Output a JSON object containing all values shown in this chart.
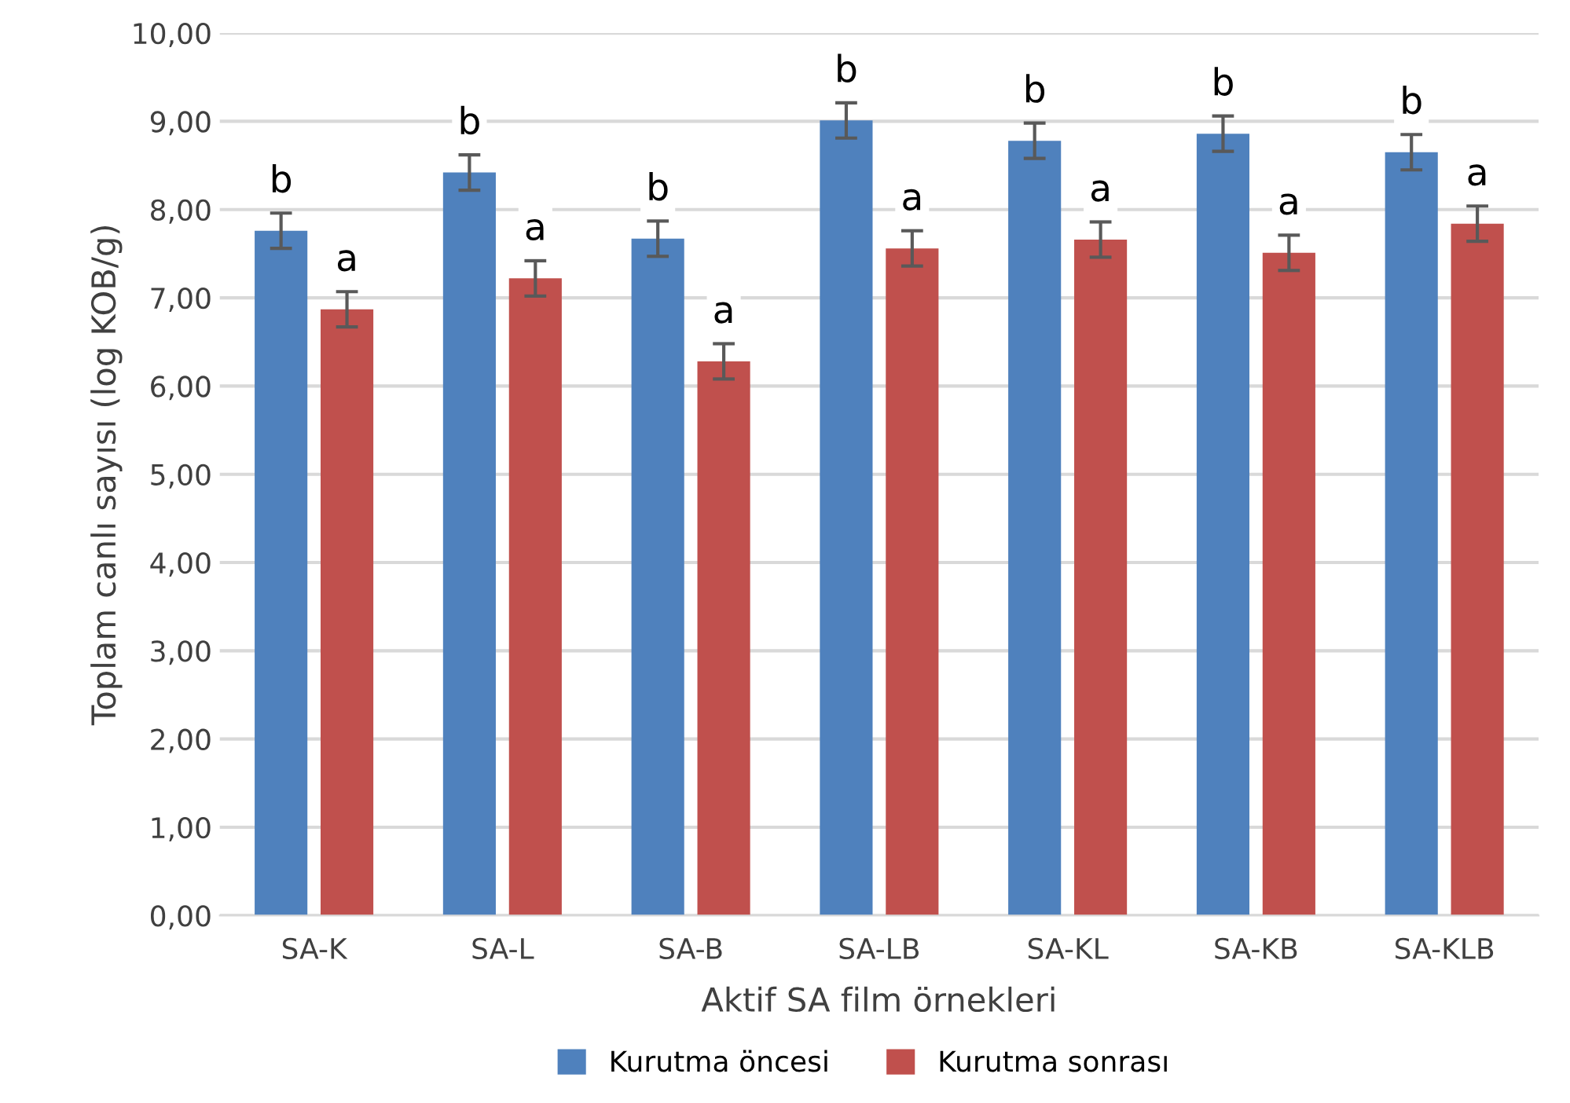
{
  "chart_data": {
    "type": "bar",
    "xlabel": "Aktif SA film örnekleri",
    "ylabel": "Toplam canlı sayısı (log KOB/g)",
    "categories": [
      "SA-K",
      "SA-L",
      "SA-B",
      "SA-LB",
      "SA-KL",
      "SA-KB",
      "SA-KLB"
    ],
    "series": [
      {
        "name": "Kurutma öncesi",
        "color": "#4f81bd",
        "values": [
          7.76,
          8.42,
          7.67,
          9.01,
          8.78,
          8.86,
          8.65
        ],
        "errors": [
          0.2,
          0.2,
          0.2,
          0.2,
          0.2,
          0.2,
          0.2
        ],
        "value_labels": [
          "b",
          "b",
          "b",
          "b",
          "b",
          "b",
          "b"
        ]
      },
      {
        "name": "Kurutma sonrası",
        "color": "#c0504d",
        "values": [
          6.87,
          7.22,
          6.28,
          7.56,
          7.66,
          7.51,
          7.84
        ],
        "errors": [
          0.2,
          0.2,
          0.2,
          0.2,
          0.2,
          0.2,
          0.2
        ],
        "value_labels": [
          "a",
          "a",
          "a",
          "a",
          "a",
          "a",
          "a"
        ]
      }
    ],
    "ylim": [
      0,
      10
    ],
    "yticks": [
      {
        "value": 0,
        "label": "0,00"
      },
      {
        "value": 1,
        "label": "1,00"
      },
      {
        "value": 2,
        "label": "2,00"
      },
      {
        "value": 3,
        "label": "3,00"
      },
      {
        "value": 4,
        "label": "4,00"
      },
      {
        "value": 5,
        "label": "5,00"
      },
      {
        "value": 6,
        "label": "6,00"
      },
      {
        "value": 7,
        "label": "7,00"
      },
      {
        "value": 8,
        "label": "8,00"
      },
      {
        "value": 9,
        "label": "9,00"
      },
      {
        "value": 10,
        "label": "10,00"
      }
    ],
    "grid": "y",
    "legend": "bottom"
  }
}
